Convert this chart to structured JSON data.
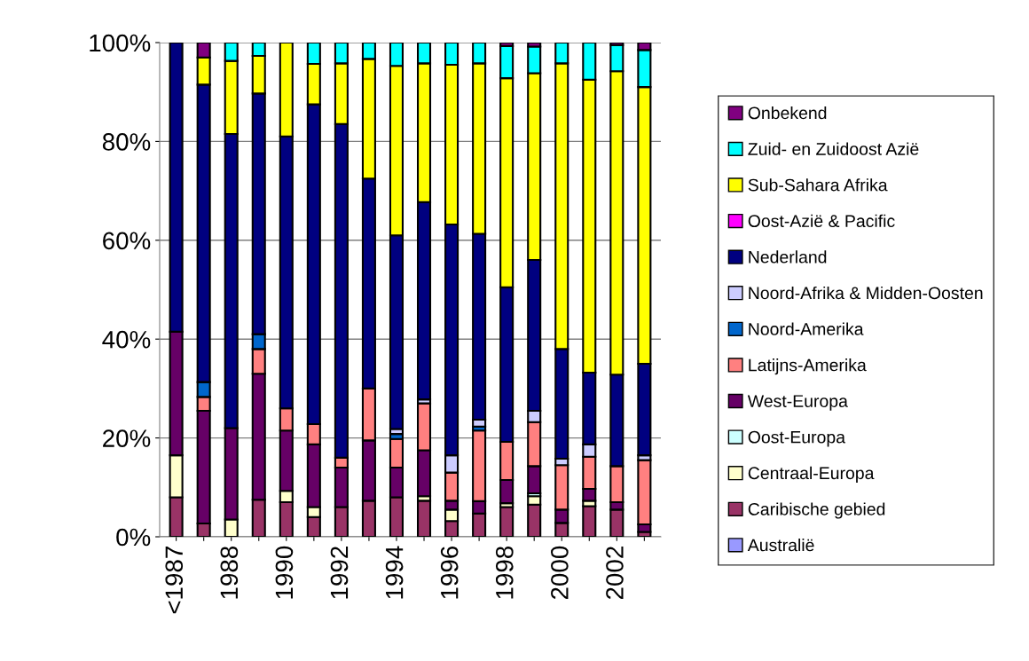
{
  "chart_data": {
    "type": "bar",
    "stacked": true,
    "categories": [
      "<1987",
      null,
      "1988",
      null,
      "1990",
      null,
      "1992",
      null,
      "1994",
      null,
      "1996",
      null,
      "1998",
      null,
      "2000",
      null,
      "2002",
      null
    ],
    "series": [
      {
        "name": "Australië",
        "color": "#9999ff",
        "values": [
          0,
          0,
          0,
          0,
          0,
          0,
          0,
          0,
          0,
          0,
          0,
          0,
          0,
          0,
          0,
          0,
          0,
          0
        ]
      },
      {
        "name": "Caribische gebied",
        "color": "#993366",
        "values": [
          8,
          2.7,
          0,
          7.5,
          7,
          4,
          6,
          7.3,
          8,
          7.3,
          3.2,
          4.7,
          6,
          6.5,
          2.8,
          6.2,
          5.5,
          1
        ]
      },
      {
        "name": "Centraal-Europa",
        "color": "#ffffcc",
        "values": [
          8.5,
          0,
          3.5,
          0,
          2.3,
          2,
          0,
          0,
          0,
          0.9,
          2.3,
          0,
          0.8,
          1.7,
          0,
          1.1,
          0,
          0
        ]
      },
      {
        "name": "Oost-Europa",
        "color": "#ccffff",
        "values": [
          0,
          0,
          0,
          0,
          0,
          0,
          0,
          0,
          0,
          0,
          0,
          0,
          0,
          0.6,
          0,
          0,
          0,
          0
        ]
      },
      {
        "name": "West-Europa",
        "color": "#660066",
        "values": [
          25,
          22.8,
          18.5,
          25.5,
          12.2,
          12.7,
          8,
          12.2,
          6,
          9.3,
          1.8,
          2.5,
          4.7,
          5.5,
          2.7,
          2.4,
          1.5,
          1.5
        ]
      },
      {
        "name": "Latijns-Amerika",
        "color": "#ff8080",
        "values": [
          0,
          2.8,
          0,
          5,
          4.5,
          4.1,
          2,
          10.5,
          5.8,
          9.5,
          5.7,
          14.3,
          7.7,
          8.9,
          9,
          6.5,
          7.3,
          13
        ]
      },
      {
        "name": "Noord-Amerika",
        "color": "#0066cc",
        "values": [
          0,
          3,
          0,
          3,
          0,
          0,
          0,
          0,
          1,
          0,
          0,
          0.8,
          0,
          0,
          0,
          0,
          0,
          0
        ]
      },
      {
        "name": "Noord-Afrika & Midden-Oosten",
        "color": "#ccccff",
        "values": [
          0,
          0,
          0,
          0,
          0,
          0,
          0,
          0,
          1,
          0.8,
          3.5,
          1.4,
          0,
          2.3,
          1.3,
          2.5,
          0,
          1
        ]
      },
      {
        "name": "Nederland",
        "color": "#000080",
        "values": [
          58.5,
          60.2,
          59.5,
          48.7,
          55,
          64.7,
          67.5,
          42.5,
          39.2,
          39.9,
          46.7,
          37.6,
          31.3,
          30.5,
          22.2,
          14.5,
          18.5,
          18.5
        ]
      },
      {
        "name": "Oost-Azië & Pacific",
        "color": "#ff00ff",
        "values": [
          0,
          0,
          0,
          0,
          0,
          0,
          0,
          0,
          0,
          0,
          0,
          0,
          0,
          0,
          0,
          0,
          0,
          0
        ]
      },
      {
        "name": "Sub-Sahara Afrika",
        "color": "#ffff00",
        "values": [
          0,
          5.5,
          14.8,
          7.6,
          19,
          8.2,
          12.3,
          24.2,
          34.3,
          28.1,
          32.3,
          34.5,
          42.3,
          37.8,
          57.8,
          59.3,
          61.4,
          56
        ]
      },
      {
        "name": "Zuid- en Zuidoost Azië",
        "color": "#00ffff",
        "values": [
          0,
          0,
          3.7,
          2.7,
          0,
          4.3,
          4.2,
          3.3,
          4.7,
          4.2,
          4.5,
          4.2,
          6.5,
          5.4,
          4.2,
          7.5,
          5.3,
          7.5
        ]
      },
      {
        "name": "Onbekend",
        "color": "#800080",
        "values": [
          0,
          3,
          0,
          0,
          0,
          0,
          0,
          0,
          0,
          0,
          0,
          0,
          0.7,
          0.8,
          0,
          0,
          0.5,
          1.5
        ]
      }
    ],
    "ylim": [
      0,
      100
    ],
    "yticks": [
      {
        "value": 0,
        "label": "0%"
      },
      {
        "value": 20,
        "label": "20%"
      },
      {
        "value": 40,
        "label": "40%"
      },
      {
        "value": 60,
        "label": "60%"
      },
      {
        "value": 80,
        "label": "80%"
      },
      {
        "value": 100,
        "label": "100%"
      }
    ],
    "grid": "y",
    "legend": "right"
  }
}
